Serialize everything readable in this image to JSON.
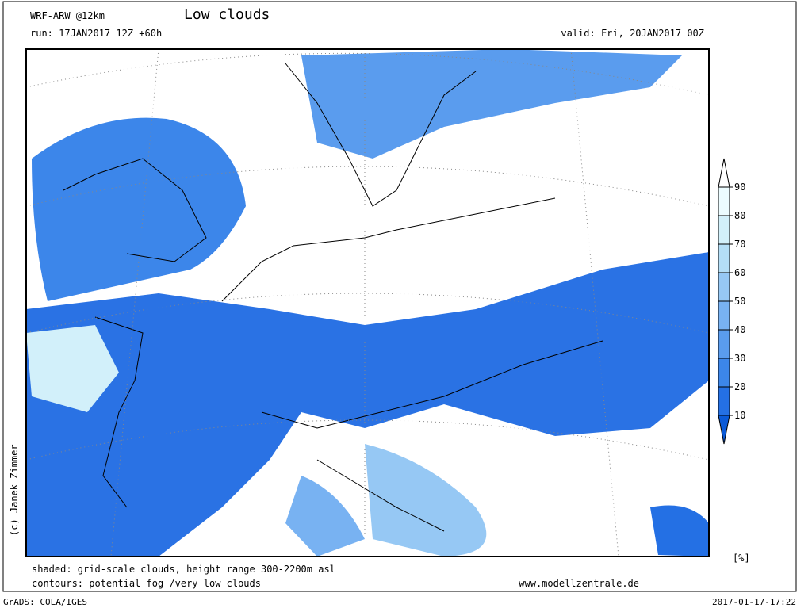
{
  "header": {
    "model": "WRF-ARW @12km",
    "title": "Low clouds",
    "run": "run: 17JAN2017 12Z +60h",
    "valid": "valid: Fri, 20JAN2017 00Z"
  },
  "legend": {
    "ticks": [
      10,
      20,
      30,
      40,
      50,
      60,
      70,
      80,
      90
    ],
    "unit": "[%]",
    "colors": [
      "#0a5ad8",
      "#2470e4",
      "#3c86ea",
      "#5a9cee",
      "#78b2f2",
      "#96c8f4",
      "#b4def6",
      "#d2f0fa",
      "#ecfcff",
      "#ffffff"
    ]
  },
  "credit": "(c) Janek Zimmer",
  "footer": {
    "shaded": "shaded: grid-scale clouds, height range 300-2200m asl",
    "contours": "contours: potential fog /very low clouds",
    "website": "www.modellzentrale.de",
    "software": "GrADS: COLA/IGES",
    "timestamp": "2017-01-17-17:22"
  }
}
